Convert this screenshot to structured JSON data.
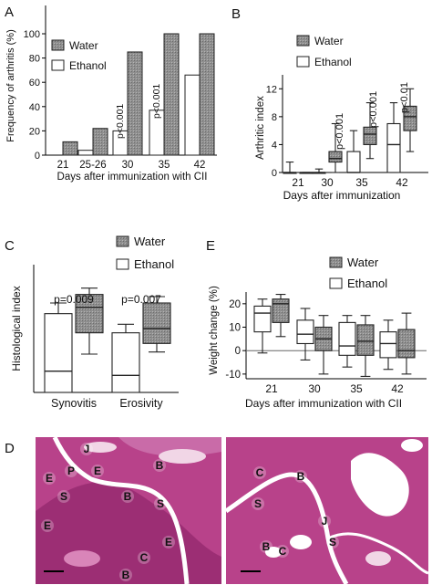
{
  "figure": {
    "colors": {
      "water_fill": "#8f8f8f",
      "ethanol_fill": "#ffffff",
      "outline": "#222222",
      "tissue_pink": "#b8428a",
      "tissue_light": "#f1d6e6"
    },
    "legend": {
      "water": "Water",
      "ethanol": "Ethanol"
    }
  },
  "panel_labels": {
    "a": "A",
    "b": "B",
    "c": "C",
    "d": "D",
    "e": "E"
  },
  "chart_data": [
    {
      "id": "A",
      "type": "bar",
      "ylabel": "Frequency of arthritis (%)",
      "xlabel": "Days after immunization with CII",
      "ylim": [
        0,
        100
      ],
      "yticks": [
        "0",
        "20",
        "40",
        "60",
        "80",
        "100"
      ],
      "categories": [
        "21",
        "25-26",
        "30",
        "35",
        "42"
      ],
      "series": [
        {
          "name": "Water",
          "values": [
            11,
            22,
            85,
            100,
            100
          ]
        },
        {
          "name": "Ethanol",
          "values": [
            0,
            4,
            20,
            37,
            66
          ]
        }
      ],
      "annotations": [
        "p<0.001",
        "p<0.001"
      ]
    },
    {
      "id": "B",
      "type": "box",
      "ylabel": "Arthritic index",
      "xlabel": "Days after immunization",
      "ylim": [
        0,
        14
      ],
      "yticks": [
        "0",
        "4",
        "8",
        "12"
      ],
      "categories": [
        "21",
        "30",
        "35",
        "42"
      ],
      "series": [
        {
          "name": "Water",
          "boxes": [
            {
              "whislo": 0,
              "q1": 0,
              "med": 0,
              "q3": 0,
              "whishi": 0
            },
            {
              "whislo": 0,
              "q1": 1.5,
              "med": 2,
              "q3": 3,
              "whishi": 7
            },
            {
              "whislo": 2,
              "q1": 4,
              "med": 5.5,
              "q3": 6.5,
              "whishi": 10
            },
            {
              "whislo": 3,
              "q1": 6,
              "med": 8,
              "q3": 9.5,
              "whishi": 12
            }
          ]
        },
        {
          "name": "Ethanol",
          "boxes": [
            {
              "whislo": 0,
              "q1": 0,
              "med": 0,
              "q3": 0,
              "whishi": 1.5
            },
            {
              "whislo": 0,
              "q1": 0,
              "med": 0,
              "q3": 0,
              "whishi": 0.5
            },
            {
              "whislo": 0,
              "q1": 0,
              "med": 0,
              "q3": 3,
              "whishi": 6
            },
            {
              "whislo": 0,
              "q1": 0,
              "med": 4,
              "q3": 7,
              "whishi": 10
            }
          ]
        }
      ],
      "annotations": [
        "p<0.001",
        "p<0.001",
        "p<0.01"
      ]
    },
    {
      "id": "C",
      "type": "box",
      "ylabel": "Histological index",
      "xlabel": "",
      "ylim": [
        0,
        3
      ],
      "categories": [
        "Synovitis",
        "Erosivity"
      ],
      "series": [
        {
          "name": "Ethanol",
          "boxes": [
            {
              "whislo": 0,
              "q1": 0,
              "med": 0.5,
              "q3": 1.85,
              "whishi": 2.1
            },
            {
              "whislo": 0,
              "q1": 0,
              "med": 0.4,
              "q3": 1.4,
              "whishi": 1.6
            }
          ]
        },
        {
          "name": "Water",
          "boxes": [
            {
              "whislo": 0.9,
              "q1": 1.4,
              "med": 2.0,
              "q3": 2.3,
              "whishi": 2.45
            },
            {
              "whislo": 0.95,
              "q1": 1.15,
              "med": 1.5,
              "q3": 2.1,
              "whishi": 2.25
            }
          ]
        }
      ],
      "annotations": [
        "p=0.009",
        "p=0.007"
      ]
    },
    {
      "id": "E",
      "type": "box",
      "ylabel": "Weight change (%)",
      "xlabel": "Days after immunization with CII",
      "ylim": [
        -12,
        25
      ],
      "yticks": [
        "-10",
        "0",
        "10",
        "20"
      ],
      "categories": [
        "21",
        "30",
        "35",
        "42"
      ],
      "series": [
        {
          "name": "Ethanol",
          "boxes": [
            {
              "whislo": -1,
              "q1": 8,
              "med": 16,
              "q3": 19,
              "whishi": 22
            },
            {
              "whislo": -4,
              "q1": 3,
              "med": 7,
              "q3": 13,
              "whishi": 18
            },
            {
              "whislo": -7,
              "q1": -2,
              "med": 2,
              "q3": 12,
              "whishi": 15
            },
            {
              "whislo": -8,
              "q1": -3,
              "med": 3,
              "q3": 8,
              "whishi": 13
            }
          ]
        },
        {
          "name": "Water",
          "boxes": [
            {
              "whislo": 6,
              "q1": 12,
              "med": 20,
              "q3": 22,
              "whishi": 24
            },
            {
              "whislo": -10,
              "q1": 0,
              "med": 5,
              "q3": 10,
              "whishi": 15
            },
            {
              "whislo": -11,
              "q1": -2,
              "med": 4,
              "q3": 11,
              "whishi": 15
            },
            {
              "whislo": -10,
              "q1": -3,
              "med": 0,
              "q3": 9,
              "whishi": 16
            }
          ]
        }
      ]
    }
  ],
  "histology": {
    "left_labels": [
      "J",
      "P",
      "E",
      "E",
      "S",
      "S",
      "B",
      "B",
      "E",
      "C",
      "B",
      "E"
    ],
    "right_labels": [
      "C",
      "B",
      "S",
      "J",
      "S",
      "B",
      "C"
    ]
  }
}
